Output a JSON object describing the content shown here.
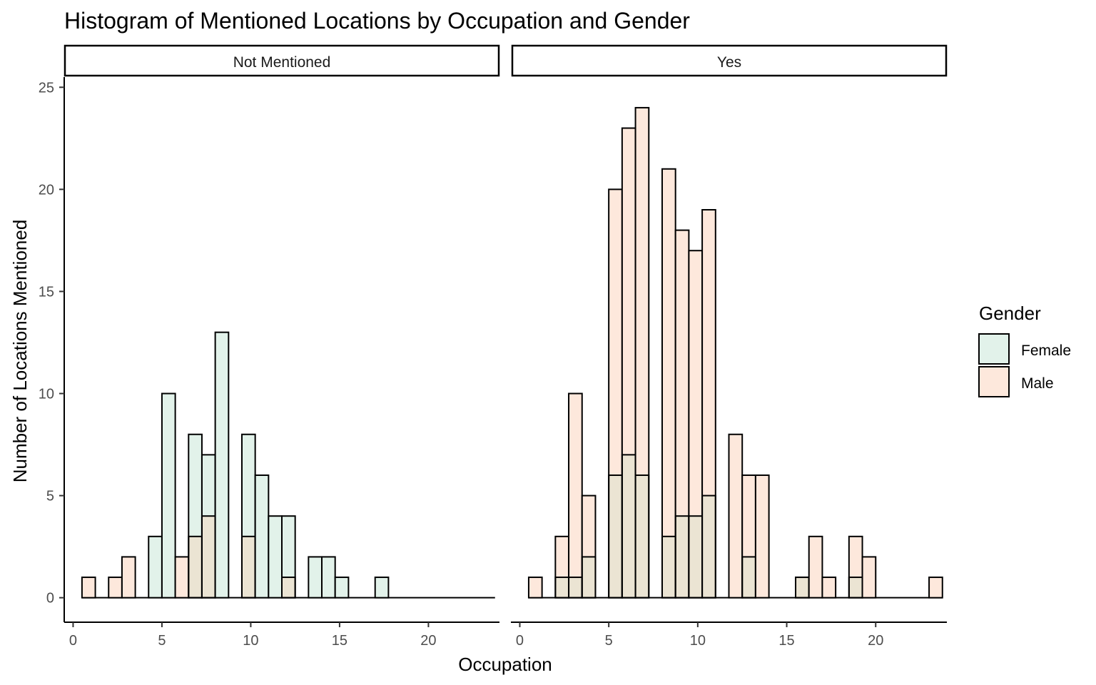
{
  "chart_data": {
    "type": "bar",
    "title": "Histogram of Mentioned Locations by Occupation and Gender",
    "xlabel": "Occupation",
    "ylabel": "Number of Locations Mentioned",
    "xlim": [
      -0.5,
      24
    ],
    "ylim": [
      -1.2,
      25.5
    ],
    "x_ticks": [
      0,
      5,
      10,
      15,
      20
    ],
    "y_ticks": [
      0,
      5,
      10,
      15,
      20,
      25
    ],
    "bin_width": 0.75,
    "grid": false,
    "legend": {
      "title": "Gender",
      "position": "right",
      "items": [
        {
          "name": "Female",
          "color": "#e2f2ea"
        },
        {
          "name": "Male",
          "color": "#fde8dc"
        }
      ]
    },
    "overlap_color": "#ebe4d3",
    "panels": [
      {
        "label": "Not Mentioned",
        "series": [
          {
            "name": "Female",
            "counts": [
              0,
              0,
              0,
              0,
              0,
              3,
              10,
              0,
              8,
              7,
              13,
              0,
              8,
              6,
              4,
              4,
              0,
              2,
              2,
              1,
              0,
              0,
              1,
              0,
              0,
              0,
              0,
              0,
              0,
              0,
              0
            ]
          },
          {
            "name": "Male",
            "counts": [
              1,
              0,
              1,
              2,
              0,
              0,
              0,
              2,
              3,
              4,
              0,
              0,
              3,
              0,
              0,
              1,
              0,
              0,
              0,
              0,
              0,
              0,
              0,
              0,
              0,
              0,
              0,
              0,
              0,
              0,
              0
            ]
          }
        ]
      },
      {
        "label": "Yes",
        "series": [
          {
            "name": "Female",
            "counts": [
              0,
              0,
              1,
              1,
              2,
              0,
              6,
              7,
              6,
              0,
              3,
              4,
              4,
              5,
              0,
              0,
              2,
              0,
              0,
              0,
              1,
              0,
              0,
              0,
              1,
              0,
              0,
              0,
              0,
              0,
              0
            ]
          },
          {
            "name": "Male",
            "counts": [
              1,
              0,
              3,
              10,
              5,
              0,
              20,
              23,
              24,
              0,
              21,
              18,
              17,
              19,
              0,
              8,
              6,
              6,
              0,
              0,
              1,
              3,
              1,
              0,
              3,
              2,
              0,
              0,
              0,
              0,
              1
            ]
          }
        ]
      }
    ]
  }
}
